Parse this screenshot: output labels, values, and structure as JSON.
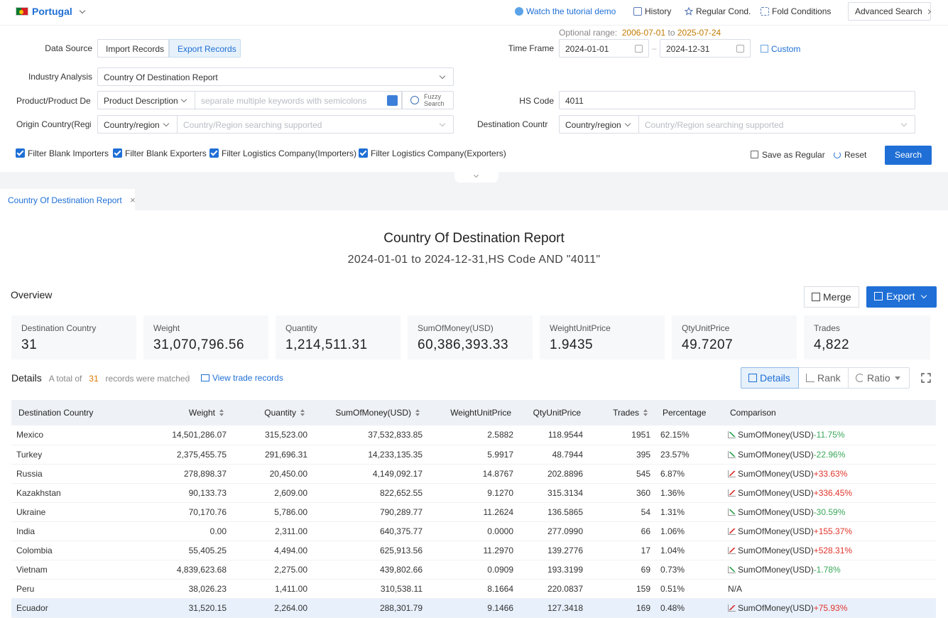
{
  "topbar": {
    "country": "Portugal",
    "tutorial": "Watch the tutorial demo",
    "history": "History",
    "regular": "Regular Cond.",
    "fold": "Fold Conditions",
    "advanced": "Advanced Search"
  },
  "form": {
    "optional_range_label": "Optional range",
    "optional_range_from": "2006-07-01",
    "optional_range_to_word": "to",
    "optional_range_to": "2025-07-24",
    "data_source_label": "Data Source",
    "import_label": "Import Records",
    "export_label": "Export Records",
    "time_frame_label": "Time Frame",
    "date_from": "2024-01-01",
    "date_to": "2024-12-31",
    "custom_label": "Custom",
    "industry_label": "Industry Analysis",
    "industry_value": "Country Of Destination Report",
    "product_label": "Product/Product De",
    "product_type": "Product Description",
    "keywords_placeholder": "separate multiple keywords with semicolons",
    "fuzzy_line1": "Fuzzy",
    "fuzzy_line2": "Search",
    "hs_label": "HS Code",
    "hs_value": "4011",
    "origin_label": "Origin Country(Regi",
    "origin_type": "Country/region",
    "origin_placeholder": "Country/Region searching supported",
    "dest_label": "Destination Countr",
    "dest_type": "Country/region",
    "dest_placeholder": "Country/Region searching supported",
    "filters": [
      "Filter Blank Importers",
      "Filter Blank Exporters",
      "Filter Logistics Company(Importers)",
      "Filter Logistics Company(Exporters)"
    ],
    "save_label": "Save as Regular",
    "reset_label": "Reset",
    "search_label": "Search"
  },
  "tab": {
    "label": "Country Of Destination Report"
  },
  "report": {
    "title": "Country Of Destination Report",
    "subtitle": "2024-01-01 to 2024-12-31,HS Code AND \"4011\""
  },
  "overview": {
    "label": "Overview",
    "merge": "Merge",
    "export": "Export",
    "stats": [
      {
        "k": "Destination Country",
        "v": "31"
      },
      {
        "k": "Weight",
        "v": "31,070,796.56"
      },
      {
        "k": "Quantity",
        "v": "1,214,511.31"
      },
      {
        "k": "SumOfMoney(USD)",
        "v": "60,386,393.33"
      },
      {
        "k": "WeightUnitPrice",
        "v": "1.9435"
      },
      {
        "k": "QtyUnitPrice",
        "v": "49.7207"
      },
      {
        "k": "Trades",
        "v": "4,822"
      }
    ]
  },
  "details": {
    "label": "Details",
    "total_prefix": "A total of",
    "total_count": "31",
    "total_suffix": "records were matched",
    "view_trade": "View trade records",
    "views": [
      "Details",
      "Rank",
      "Ratio"
    ]
  },
  "table": {
    "headers": [
      "Destination Country",
      "Weight",
      "Quantity",
      "SumOfMoney(USD)",
      "WeightUnitPrice",
      "QtyUnitPrice",
      "Trades",
      "Percentage",
      "Comparison"
    ],
    "rows": [
      {
        "country": "Mexico",
        "weight": "14,501,286.07",
        "quantity": "315,523.00",
        "money": "37,532,833.85",
        "wup": "2.5882",
        "qup": "118.9544",
        "trades": "1951",
        "pct": "62.15%",
        "cmp_label": "SumOfMoney(USD)",
        "cmp": "-11.75%",
        "dir": "down"
      },
      {
        "country": "Turkey",
        "weight": "2,375,455.75",
        "quantity": "291,696.31",
        "money": "14,233,135.35",
        "wup": "5.9917",
        "qup": "48.7944",
        "trades": "395",
        "pct": "23.57%",
        "cmp_label": "SumOfMoney(USD)",
        "cmp": "-22.96%",
        "dir": "down"
      },
      {
        "country": "Russia",
        "weight": "278,898.37",
        "quantity": "20,450.00",
        "money": "4,149,092.17",
        "wup": "14.8767",
        "qup": "202.8896",
        "trades": "545",
        "pct": "6.87%",
        "cmp_label": "SumOfMoney(USD)",
        "cmp": "+33.63%",
        "dir": "up"
      },
      {
        "country": "Kazakhstan",
        "weight": "90,133.73",
        "quantity": "2,609.00",
        "money": "822,652.55",
        "wup": "9.1270",
        "qup": "315.3134",
        "trades": "360",
        "pct": "1.36%",
        "cmp_label": "SumOfMoney(USD)",
        "cmp": "+336.45%",
        "dir": "up"
      },
      {
        "country": "Ukraine",
        "weight": "70,170.76",
        "quantity": "5,786.00",
        "money": "790,289.77",
        "wup": "11.2624",
        "qup": "136.5865",
        "trades": "54",
        "pct": "1.31%",
        "cmp_label": "SumOfMoney(USD)",
        "cmp": "-30.59%",
        "dir": "down"
      },
      {
        "country": "India",
        "weight": "0.00",
        "quantity": "2,311.00",
        "money": "640,375.77",
        "wup": "0.0000",
        "qup": "277.0990",
        "trades": "66",
        "pct": "1.06%",
        "cmp_label": "SumOfMoney(USD)",
        "cmp": "+155.37%",
        "dir": "up"
      },
      {
        "country": "Colombia",
        "weight": "55,405.25",
        "quantity": "4,494.00",
        "money": "625,913.56",
        "wup": "11.2970",
        "qup": "139.2776",
        "trades": "17",
        "pct": "1.04%",
        "cmp_label": "SumOfMoney(USD)",
        "cmp": "+528.31%",
        "dir": "up"
      },
      {
        "country": "Vietnam",
        "weight": "4,839,623.68",
        "quantity": "2,275.00",
        "money": "439,802.66",
        "wup": "0.0909",
        "qup": "193.3199",
        "trades": "69",
        "pct": "0.73%",
        "cmp_label": "SumOfMoney(USD)",
        "cmp": "-1.78%",
        "dir": "down"
      },
      {
        "country": "Peru",
        "weight": "38,026.23",
        "quantity": "1,411.00",
        "money": "310,538.11",
        "wup": "8.1664",
        "qup": "220.0837",
        "trades": "159",
        "pct": "0.51%",
        "cmp_label": "",
        "cmp": "N/A",
        "dir": "none"
      },
      {
        "country": "Ecuador",
        "weight": "31,520.15",
        "quantity": "2,264.00",
        "money": "288,301.79",
        "wup": "9.1466",
        "qup": "127.3418",
        "trades": "169",
        "pct": "0.48%",
        "cmp_label": "SumOfMoney(USD)",
        "cmp": "+75.93%",
        "dir": "up"
      }
    ]
  },
  "colors": {
    "accent": "#1f6fd6",
    "up": "#e0352b",
    "down": "#3aa85a",
    "band": "#f3f4f6"
  }
}
